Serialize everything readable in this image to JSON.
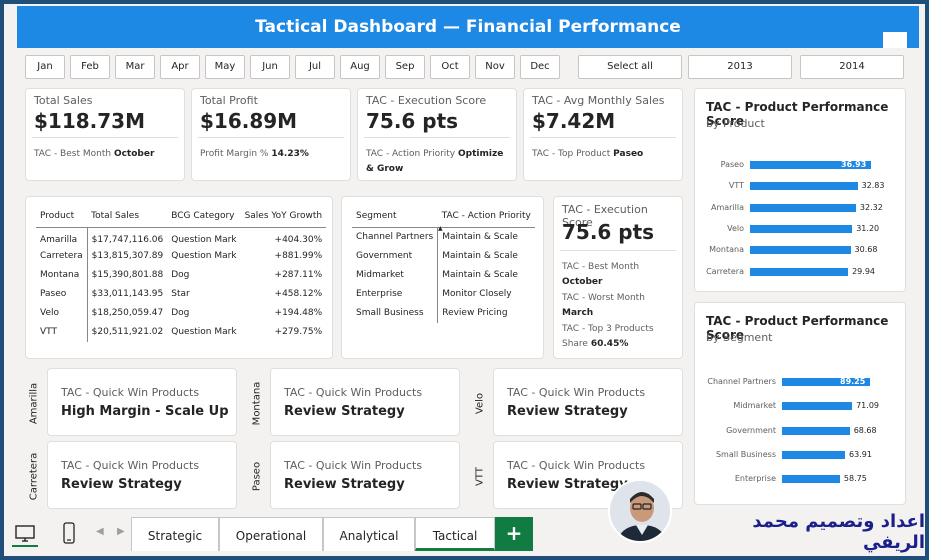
{
  "header": {
    "title": "Tactical Dashboard — Financial Performance"
  },
  "months": [
    "Jan",
    "Feb",
    "Mar",
    "Apr",
    "May",
    "Jun",
    "Jul",
    "Aug",
    "Sep",
    "Oct",
    "Nov",
    "Dec"
  ],
  "slicer_options": [
    "Select all",
    "2013",
    "2014"
  ],
  "kpis": [
    {
      "title": "Total Sales",
      "value": "$118.73M",
      "sub_label": "TAC - Best Month",
      "sub_value": "October"
    },
    {
      "title": "Total Profit",
      "value": "$16.89M",
      "sub_label": "Profit Margin %",
      "sub_value": "14.23%"
    },
    {
      "title": "TAC - Execution Score",
      "value": "75.6 pts",
      "sub_label": "TAC - Action Priority",
      "sub_value": "Optimize & Grow"
    },
    {
      "title": "TAC - Avg Monthly Sales",
      "value": "$7.42M",
      "sub_label": "TAC - Top Product",
      "sub_value": "Paseo"
    }
  ],
  "product_table": {
    "headers": [
      "Product",
      "Total Sales",
      "BCG Category",
      "Sales YoY Growth"
    ],
    "rows": [
      [
        "Amarilla",
        "$17,747,116.06",
        "Question Mark",
        "+404.30%"
      ],
      [
        "Carretera",
        "$13,815,307.89",
        "Question Mark",
        "+881.99%"
      ],
      [
        "Montana",
        "$15,390,801.88",
        "Dog",
        "+287.11%"
      ],
      [
        "Paseo",
        "$33,011,143.95",
        "Star",
        "+458.12%"
      ],
      [
        "Velo",
        "$18,250,059.47",
        "Dog",
        "+194.48%"
      ],
      [
        "VTT",
        "$20,511,921.02",
        "Question Mark",
        "+279.75%"
      ]
    ]
  },
  "segment_table": {
    "headers": [
      "Segment",
      "TAC - Action Priority"
    ],
    "rows": [
      [
        "Channel Partners",
        "Maintain & Scale"
      ],
      [
        "Government",
        "Maintain & Scale"
      ],
      [
        "Midmarket",
        "Maintain & Scale"
      ],
      [
        "Enterprise",
        "Monitor Closely"
      ],
      [
        "Small Business",
        "Review Pricing"
      ]
    ]
  },
  "exec_card": {
    "title": "TAC - Execution Score",
    "value": "75.6 pts",
    "best_label": "TAC - Best Month",
    "best_value": "October",
    "worst_label": "TAC - Worst Month",
    "worst_value": "March",
    "top3_label": "TAC - Top 3 Products",
    "top3_label2": "Share",
    "top3_value": "60.45%"
  },
  "chart_data": [
    {
      "type": "bar",
      "orientation": "horizontal",
      "title": "TAC - Product Performance Score",
      "subtitle": "by Product",
      "categories": [
        "Paseo",
        "VTT",
        "Amarilla",
        "Velo",
        "Montana",
        "Carretera"
      ],
      "values": [
        36.93,
        32.83,
        32.32,
        31.2,
        30.68,
        29.94
      ],
      "labels": [
        "36.93",
        "32.83",
        "32.32",
        "31.20",
        "30.68",
        "29.94"
      ],
      "color": "#1e88e5"
    },
    {
      "type": "bar",
      "orientation": "horizontal",
      "title": "TAC - Product Performance Score",
      "subtitle": "by Segment",
      "categories": [
        "Channel Partners",
        "Midmarket",
        "Government",
        "Small Business",
        "Enterprise"
      ],
      "values": [
        89.25,
        71.09,
        68.68,
        63.91,
        58.75
      ],
      "labels": [
        "89.25",
        "71.09",
        "68.68",
        "63.91",
        "58.75"
      ],
      "color": "#1e88e5"
    }
  ],
  "quick_wins": [
    {
      "product": "Amarilla",
      "title": "TAC - Quick Win Products",
      "value": "High Margin - Scale Up"
    },
    {
      "product": "Montana",
      "title": "TAC - Quick Win Products",
      "value": "Review Strategy"
    },
    {
      "product": "Velo",
      "title": "TAC - Quick Win Products",
      "value": "Review Strategy"
    },
    {
      "product": "Carretera",
      "title": "TAC - Quick Win Products",
      "value": "Review Strategy"
    },
    {
      "product": "Paseo",
      "title": "TAC - Quick Win Products",
      "value": "Review Strategy"
    },
    {
      "product": "VTT",
      "title": "TAC - Quick Win Products",
      "value": "Review Strategy"
    }
  ],
  "tabs": [
    "Strategic",
    "Operational",
    "Analytical",
    "Tactical"
  ],
  "active_tab": "Tactical",
  "add_tab": "+",
  "credit": "اعداد وتصميم محمد الريفي",
  "icons": {
    "desktop": "desktop-icon",
    "phone": "phone-icon",
    "prev": "chevron-left-icon",
    "next": "chevron-right-icon"
  },
  "colors": {
    "header": "#1e88e5",
    "bar": "#1e88e5",
    "tab_accent": "#107c41",
    "credit": "#1a1f8a"
  }
}
